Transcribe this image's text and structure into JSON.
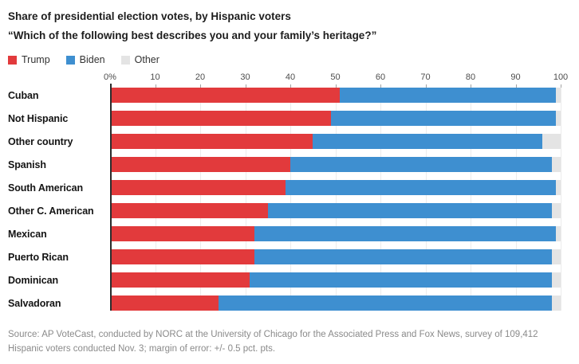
{
  "title": "Share of presidential election votes, by Hispanic voters",
  "subtitle": "“Which of the following best describes you and your family’s heritage?”",
  "legend": [
    {
      "label": "Trump",
      "color": "#e23a3c"
    },
    {
      "label": "Biden",
      "color": "#3e8fd0"
    },
    {
      "label": "Other",
      "color": "#e4e4e4"
    }
  ],
  "source": "Source: AP VoteCast, conducted by NORC at the University of Chicago for the Associated Press and Fox News, survey of 109,412 Hispanic voters conducted Nov. 3; margin of error: +/- 0.5 pct. pts.",
  "chart_data": {
    "type": "bar",
    "orientation": "horizontal",
    "stacked": true,
    "title": "Share of presidential election votes, by Hispanic voters",
    "categories": [
      "Cuban",
      "Not Hispanic",
      "Other country",
      "Spanish",
      "South American",
      "Other C. American",
      "Mexican",
      "Puerto Rican",
      "Dominican",
      "Salvadoran"
    ],
    "series": [
      {
        "name": "Trump",
        "color": "#e23a3c",
        "values": [
          51,
          49,
          45,
          40,
          39,
          35,
          32,
          32,
          31,
          24
        ]
      },
      {
        "name": "Biden",
        "color": "#3e8fd0",
        "values": [
          48,
          50,
          51,
          58,
          60,
          63,
          67,
          66,
          67,
          74
        ]
      },
      {
        "name": "Other",
        "color": "#e4e4e4",
        "values": [
          1,
          1,
          4,
          2,
          1,
          2,
          1,
          2,
          2,
          2
        ]
      }
    ],
    "x_axis": {
      "min": 0,
      "max": 100,
      "ticks": [
        "0%",
        "10",
        "20",
        "30",
        "40",
        "50",
        "60",
        "70",
        "80",
        "90",
        "100"
      ]
    },
    "legend_position": "top",
    "grid": true
  }
}
